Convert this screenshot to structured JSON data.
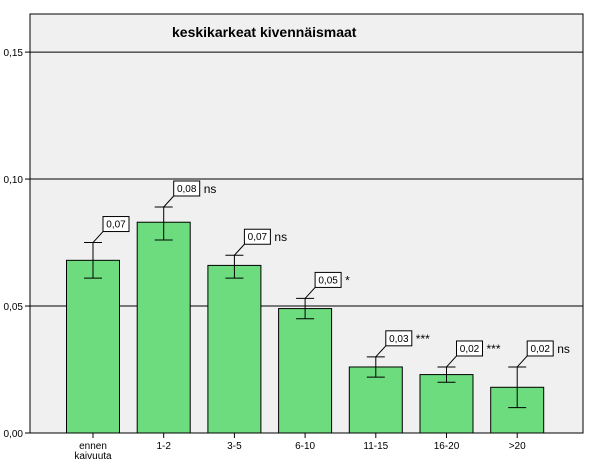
{
  "chart_data": {
    "type": "bar",
    "title": "keskikarkeat kivennäismaat",
    "xlabel": "",
    "ylabel": "",
    "categories": [
      "ennen kaivuuta",
      "1-2",
      "3-5",
      "6-10",
      "11-15",
      "16-20",
      ">20"
    ],
    "category_lines": [
      [
        "ennen",
        "kaivuuta"
      ],
      [
        "1-2"
      ],
      [
        "3-5"
      ],
      [
        "6-10"
      ],
      [
        "11-15"
      ],
      [
        "16-20"
      ],
      [
        ">20"
      ]
    ],
    "values": [
      0.068,
      0.083,
      0.066,
      0.049,
      0.026,
      0.023,
      0.018
    ],
    "error_low": [
      0.061,
      0.076,
      0.061,
      0.045,
      0.022,
      0.02,
      0.01
    ],
    "error_high": [
      0.075,
      0.089,
      0.07,
      0.053,
      0.03,
      0.026,
      0.026
    ],
    "data_labels": [
      "0,07",
      "0,08",
      "0,07",
      "0,05",
      "0,03",
      "0,02",
      "0,02"
    ],
    "significance": [
      "",
      "ns",
      "ns",
      "*",
      "***",
      "***",
      "ns"
    ],
    "ylim": [
      0,
      0.165
    ],
    "yticks": [
      0,
      0.05,
      0.1,
      0.15
    ],
    "ytick_labels": [
      "0,00",
      "0,05",
      "0,10",
      "0,15"
    ],
    "grid": true,
    "bar_color": "#6ddc7e",
    "plot_background": "#f0f0f0"
  }
}
